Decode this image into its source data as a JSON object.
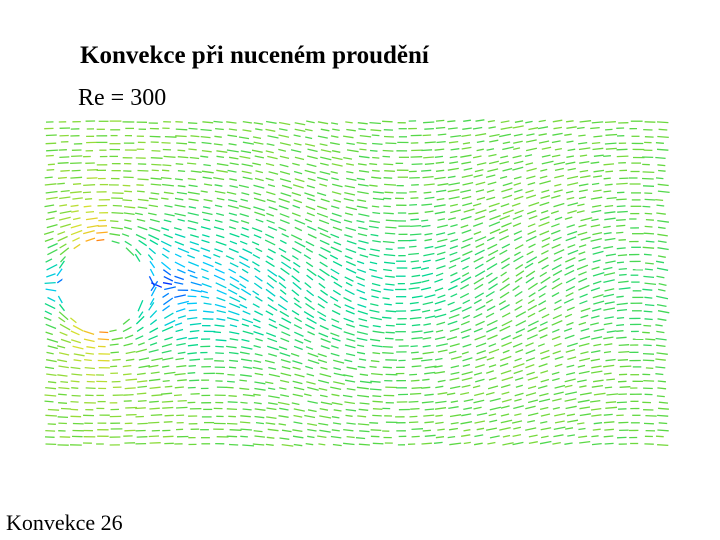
{
  "slide": {
    "title": "Konvekce při nuceném proudění",
    "subtitle": "Re = 300",
    "footer": "Konvekce 26"
  },
  "figure": {
    "type": "velocity-vector-field",
    "colormap": [
      "#0000ff",
      "#00c8ff",
      "#00d890",
      "#60d840",
      "#d8e030",
      "#ffb020",
      "#ff5000"
    ]
  }
}
